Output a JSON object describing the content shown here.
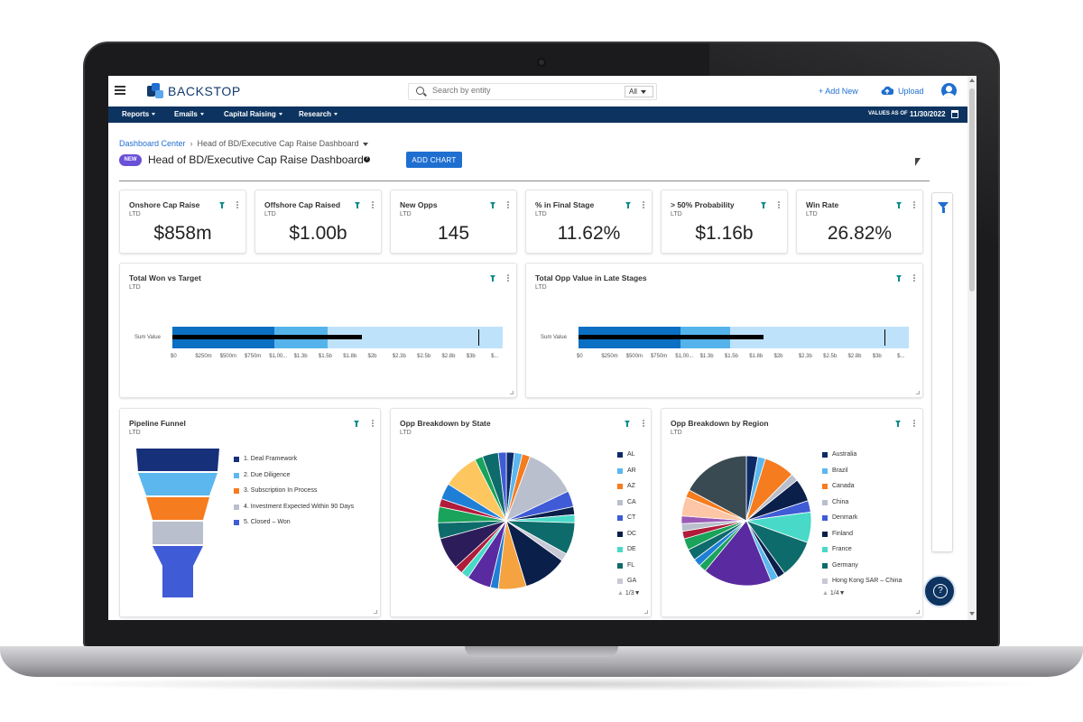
{
  "app": {
    "brand": "BACKSTOP",
    "search_placeholder": "Search by entity",
    "search_scope": "All",
    "add_new_label": "+ Add New",
    "upload_label": "Upload"
  },
  "nav": {
    "items": [
      "Reports",
      "Emails",
      "Capital Raising",
      "Research"
    ],
    "values_as_of_label": "VALUES AS OF",
    "values_date": "11/30/2022"
  },
  "page": {
    "breadcrumb_root": "Dashboard Center",
    "breadcrumb_current": "Head of BD/Executive Cap Raise Dashboard",
    "new_badge": "NEW",
    "title": "Head of BD/Executive Cap Raise Dashboard",
    "add_chart_label": "ADD CHART"
  },
  "kpis": [
    {
      "title": "Onshore Cap Raise",
      "sub": "LTD",
      "value": "$858m"
    },
    {
      "title": "Offshore Cap Raised",
      "sub": "LTD",
      "value": "$1.00b"
    },
    {
      "title": "New Opps",
      "sub": "LTD",
      "value": "145"
    },
    {
      "title": "% in Final Stage",
      "sub": "LTD",
      "value": "11.62%"
    },
    {
      "title": "> 50% Probability",
      "sub": "LTD",
      "value": "$1.16b"
    },
    {
      "title": "Win Rate",
      "sub": "LTD",
      "value": "26.82%"
    }
  ],
  "bullet_charts": [
    {
      "title": "Total Won vs Target",
      "sub": "LTD",
      "row_label": "Sum Value",
      "ticks": [
        "$0",
        "$250m",
        "$500m",
        "$750m",
        "$1,00...",
        "$1.3b",
        "$1.5b",
        "$1.8b",
        "$2b",
        "$2.3b",
        "$2.5b",
        "$2.8b",
        "$3b",
        "$..."
      ],
      "range_bands": [
        0.31,
        0.47,
        1.0
      ],
      "actual_fraction": 0.575,
      "target_fraction": 0.925
    },
    {
      "title": "Total Opp Value in Late Stages",
      "sub": "LTD",
      "row_label": "Sum Value",
      "ticks": [
        "$0",
        "$250m",
        "$500m",
        "$750m",
        "$1,00...",
        "$1.3b",
        "$1.5b",
        "$1.8b",
        "$2b",
        "$2.3b",
        "$2.5b",
        "$2.8b",
        "$3b",
        "$..."
      ],
      "range_bands": [
        0.31,
        0.46,
        1.0
      ],
      "actual_fraction": 0.56,
      "target_fraction": 0.925
    }
  ],
  "funnel": {
    "title": "Pipeline Funnel",
    "sub": "LTD",
    "stages": [
      {
        "label": "1. Deal Framework",
        "color": "#16307a"
      },
      {
        "label": "2. Due Diligence",
        "color": "#5bb7ee"
      },
      {
        "label": "3. Subscription In Process",
        "color": "#f57c1f"
      },
      {
        "label": "4. Investment Expected Within 90 Days",
        "color": "#b9bfcc"
      },
      {
        "label": "5. Closed – Won",
        "color": "#3f5bd6"
      }
    ]
  },
  "pie_state": {
    "title": "Opp Breakdown by State",
    "sub": "LTD",
    "legend": [
      {
        "label": "AL",
        "color": "#0d2a66"
      },
      {
        "label": "AR",
        "color": "#5bb7ee"
      },
      {
        "label": "AZ",
        "color": "#f57c1f"
      },
      {
        "label": "CA",
        "color": "#b9bfcc"
      },
      {
        "label": "CT",
        "color": "#3f5bd6"
      },
      {
        "label": "DC",
        "color": "#0a1f4a"
      },
      {
        "label": "DE",
        "color": "#48d9c8"
      },
      {
        "label": "FL",
        "color": "#0e6b6b"
      },
      {
        "label": "GA",
        "color": "#c9c9d6"
      }
    ],
    "pager": "1/3",
    "slices": [
      {
        "color": "#0d2a66",
        "value": 2
      },
      {
        "color": "#5bb7ee",
        "value": 2
      },
      {
        "color": "#f57c1f",
        "value": 2
      },
      {
        "color": "#b9bfcc",
        "value": 13
      },
      {
        "color": "#3f5bd6",
        "value": 4
      },
      {
        "color": "#0a1f4a",
        "value": 2
      },
      {
        "color": "#48d9c8",
        "value": 2
      },
      {
        "color": "#0e6b6b",
        "value": 8
      },
      {
        "color": "#c9c9d6",
        "value": 2
      },
      {
        "color": "#0a1f4a",
        "value": 11
      },
      {
        "color": "#f4a340",
        "value": 7
      },
      {
        "color": "#1f7fd6",
        "value": 2
      },
      {
        "color": "#5a2aa0",
        "value": 6
      },
      {
        "color": "#48d9c8",
        "value": 2
      },
      {
        "color": "#b01c3a",
        "value": 2
      },
      {
        "color": "#2c1d5a",
        "value": 8
      },
      {
        "color": "#0e6b6b",
        "value": 4
      },
      {
        "color": "#1aa35a",
        "value": 4
      },
      {
        "color": "#b01c3a",
        "value": 2
      },
      {
        "color": "#1f7fd6",
        "value": 4
      },
      {
        "color": "#fdc65f",
        "value": 9
      },
      {
        "color": "#1aa35a",
        "value": 2
      },
      {
        "color": "#0e6b6b",
        "value": 4
      },
      {
        "color": "#3f5bd6",
        "value": 2
      }
    ]
  },
  "pie_region": {
    "title": "Opp Breakdown by Region",
    "sub": "LTD",
    "legend": [
      {
        "label": "Australia",
        "color": "#0d2a66"
      },
      {
        "label": "Brazil",
        "color": "#5bb7ee"
      },
      {
        "label": "Canada",
        "color": "#f57c1f"
      },
      {
        "label": "China",
        "color": "#b9bfcc"
      },
      {
        "label": "Denmark",
        "color": "#3f5bd6"
      },
      {
        "label": "Finland",
        "color": "#0a1f4a"
      },
      {
        "label": "France",
        "color": "#48d9c8"
      },
      {
        "label": "Germany",
        "color": "#0e6b6b"
      },
      {
        "label": "Hong Kong SAR – China",
        "color": "#c9c9d6"
      }
    ],
    "pager": "1/4",
    "slices": [
      {
        "color": "#0d2a66",
        "value": 3
      },
      {
        "color": "#5bb7ee",
        "value": 2
      },
      {
        "color": "#f57c1f",
        "value": 8
      },
      {
        "color": "#b9bfcc",
        "value": 2
      },
      {
        "color": "#0a1f4a",
        "value": 6
      },
      {
        "color": "#3f5bd6",
        "value": 3
      },
      {
        "color": "#48d9c8",
        "value": 8
      },
      {
        "color": "#0e6b6b",
        "value": 10
      },
      {
        "color": "#0a1f4a",
        "value": 2
      },
      {
        "color": "#5bb7ee",
        "value": 2
      },
      {
        "color": "#5a2aa0",
        "value": 18
      },
      {
        "color": "#1aa35a",
        "value": 2
      },
      {
        "color": "#1f7fd6",
        "value": 2
      },
      {
        "color": "#0e6b6b",
        "value": 3
      },
      {
        "color": "#1aa35a",
        "value": 3
      },
      {
        "color": "#b01c3a",
        "value": 2
      },
      {
        "color": "#b9bfcc",
        "value": 2
      },
      {
        "color": "#9b59b6",
        "value": 2
      },
      {
        "color": "#fdc6a6",
        "value": 5
      },
      {
        "color": "#f57c1f",
        "value": 2
      },
      {
        "color": "#3a4a52",
        "value": 18
      }
    ]
  }
}
